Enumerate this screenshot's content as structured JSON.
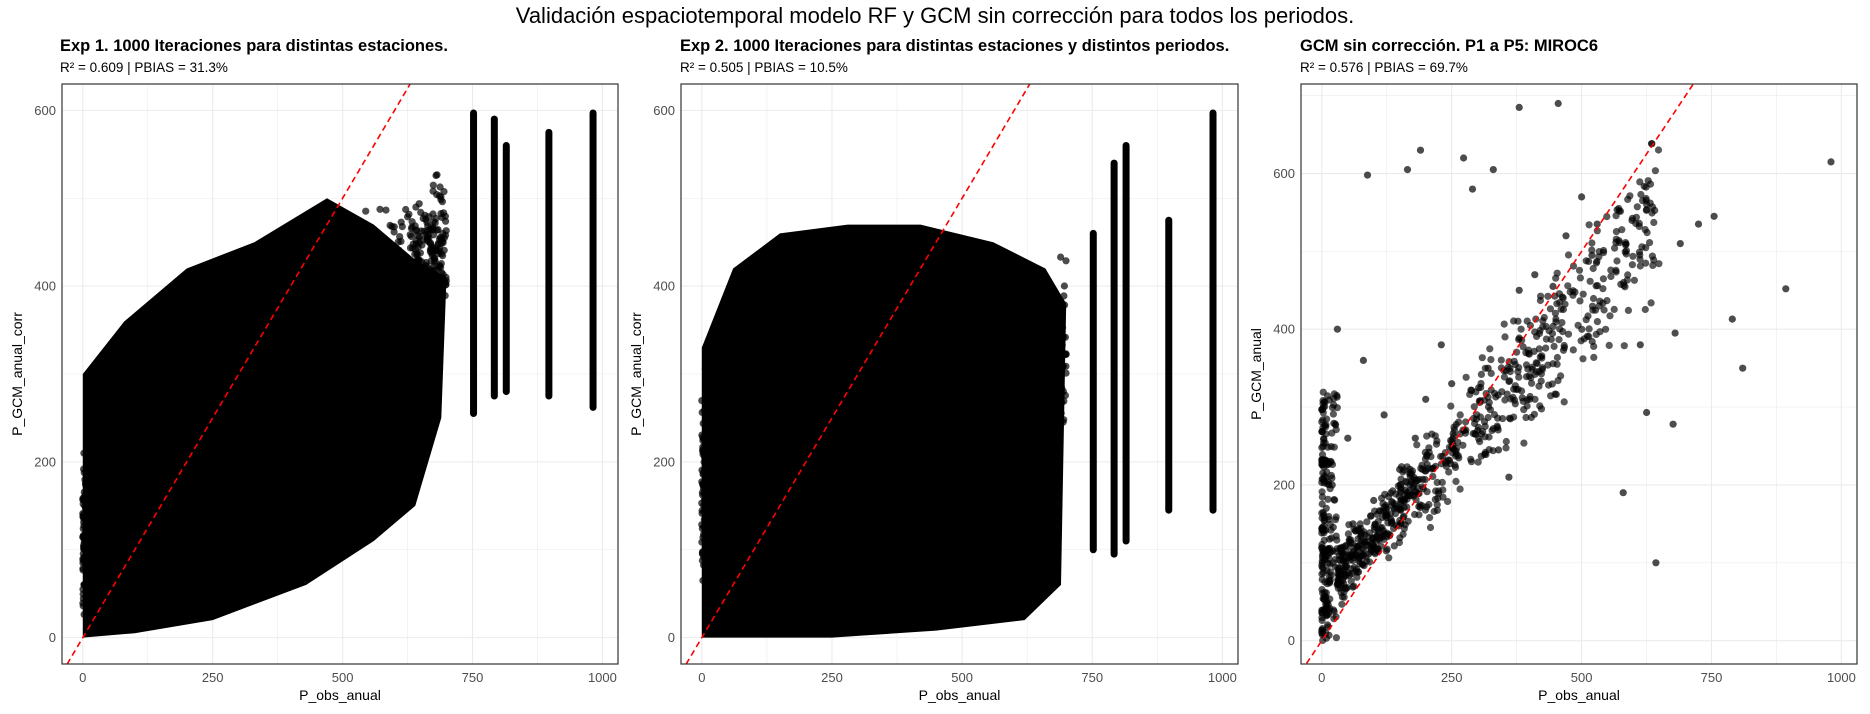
{
  "title": "Validación espaciotemporal modelo RF y GCM sin corrección para todos los periodos.",
  "colors": {
    "point": "#000000",
    "identity_line": "#ff0000",
    "grid": "#ebebeb",
    "panel_border": "#333333"
  },
  "chart_data": [
    {
      "type": "scatter",
      "title": "Exp 1. 1000 Iteraciones para distintas estaciones.",
      "subtitle": "R² = 0.609 | PBIAS = 31.3%",
      "xlabel": "P_obs_anual",
      "ylabel": "P_GCM_anual_corr",
      "xlim": [
        -40,
        1030
      ],
      "ylim": [
        -30,
        630
      ],
      "xticks": [
        0,
        250,
        500,
        750,
        1000
      ],
      "yticks": [
        0,
        200,
        400,
        600
      ],
      "grid": true,
      "reference_line": {
        "slope": 1,
        "intercept": 0,
        "style": "dashed"
      },
      "point_density": "dense",
      "vertical_clusters": [
        {
          "x": 752,
          "ymin": 255,
          "ymax": 597
        },
        {
          "x": 792,
          "ymin": 275,
          "ymax": 590
        },
        {
          "x": 815,
          "ymin": 280,
          "ymax": 560
        },
        {
          "x": 897,
          "ymin": 275,
          "ymax": 575
        },
        {
          "x": 982,
          "ymin": 262,
          "ymax": 597
        }
      ],
      "summary": {
        "x_range": [
          0,
          982
        ],
        "y_range": [
          0,
          597
        ]
      }
    },
    {
      "type": "scatter",
      "title": "Exp 2. 1000 Iteraciones para distintas estaciones y distintos periodos.",
      "subtitle": "R² = 0.505 | PBIAS = 10.5%",
      "xlabel": "P_obs_anual",
      "ylabel": "P_GCM_anual_corr",
      "xlim": [
        -40,
        1030
      ],
      "ylim": [
        -30,
        630
      ],
      "xticks": [
        0,
        250,
        500,
        750,
        1000
      ],
      "yticks": [
        0,
        200,
        400,
        600
      ],
      "grid": true,
      "reference_line": {
        "slope": 1,
        "intercept": 0,
        "style": "dashed"
      },
      "point_density": "dense",
      "vertical_clusters": [
        {
          "x": 752,
          "ymin": 100,
          "ymax": 460
        },
        {
          "x": 792,
          "ymin": 95,
          "ymax": 540
        },
        {
          "x": 815,
          "ymin": 110,
          "ymax": 560
        },
        {
          "x": 897,
          "ymin": 145,
          "ymax": 475
        },
        {
          "x": 982,
          "ymin": 145,
          "ymax": 597
        }
      ],
      "summary": {
        "x_range": [
          0,
          982
        ],
        "y_range": [
          0,
          597
        ]
      }
    },
    {
      "type": "scatter",
      "title": "GCM sin corrección. P1 a P5: MIROC6",
      "subtitle": "R² = 0.576 | PBIAS = 69.7%",
      "xlabel": "P_obs_anual",
      "ylabel": "P_GCM_anual",
      "xlim": [
        -40,
        1030
      ],
      "ylim": [
        -30,
        715
      ],
      "xticks": [
        0,
        250,
        500,
        750,
        1000
      ],
      "yticks": [
        0,
        200,
        400,
        600
      ],
      "grid": true,
      "reference_line": {
        "slope": 1,
        "intercept": 0,
        "style": "dashed"
      },
      "point_density": "sparse",
      "points": [
        [
          980,
          615
        ],
        [
          893,
          452
        ],
        [
          810,
          350
        ],
        [
          790,
          413
        ],
        [
          755,
          545
        ],
        [
          725,
          535
        ],
        [
          690,
          510
        ],
        [
          680,
          395
        ],
        [
          676,
          278
        ],
        [
          643,
          100
        ],
        [
          625,
          293
        ],
        [
          613,
          380
        ],
        [
          580,
          190
        ],
        [
          380,
          685
        ],
        [
          455,
          690
        ],
        [
          330,
          605
        ],
        [
          290,
          580
        ],
        [
          273,
          620
        ],
        [
          190,
          630
        ],
        [
          88,
          598
        ],
        [
          165,
          605
        ],
        [
          520,
          495
        ],
        [
          500,
          570
        ],
        [
          530,
          535
        ],
        [
          470,
          520
        ],
        [
          445,
          455
        ],
        [
          410,
          470
        ],
        [
          400,
          310
        ],
        [
          380,
          450
        ],
        [
          360,
          210
        ],
        [
          340,
          245
        ],
        [
          320,
          350
        ],
        [
          300,
          270
        ],
        [
          250,
          330
        ],
        [
          230,
          380
        ],
        [
          200,
          310
        ],
        [
          180,
          260
        ],
        [
          150,
          220
        ],
        [
          120,
          290
        ],
        [
          100,
          180
        ],
        [
          80,
          360
        ],
        [
          60,
          150
        ],
        [
          50,
          260
        ],
        [
          40,
          120
        ],
        [
          30,
          400
        ],
        [
          20,
          200
        ],
        [
          10,
          90
        ],
        [
          5,
          40
        ]
      ]
    }
  ]
}
